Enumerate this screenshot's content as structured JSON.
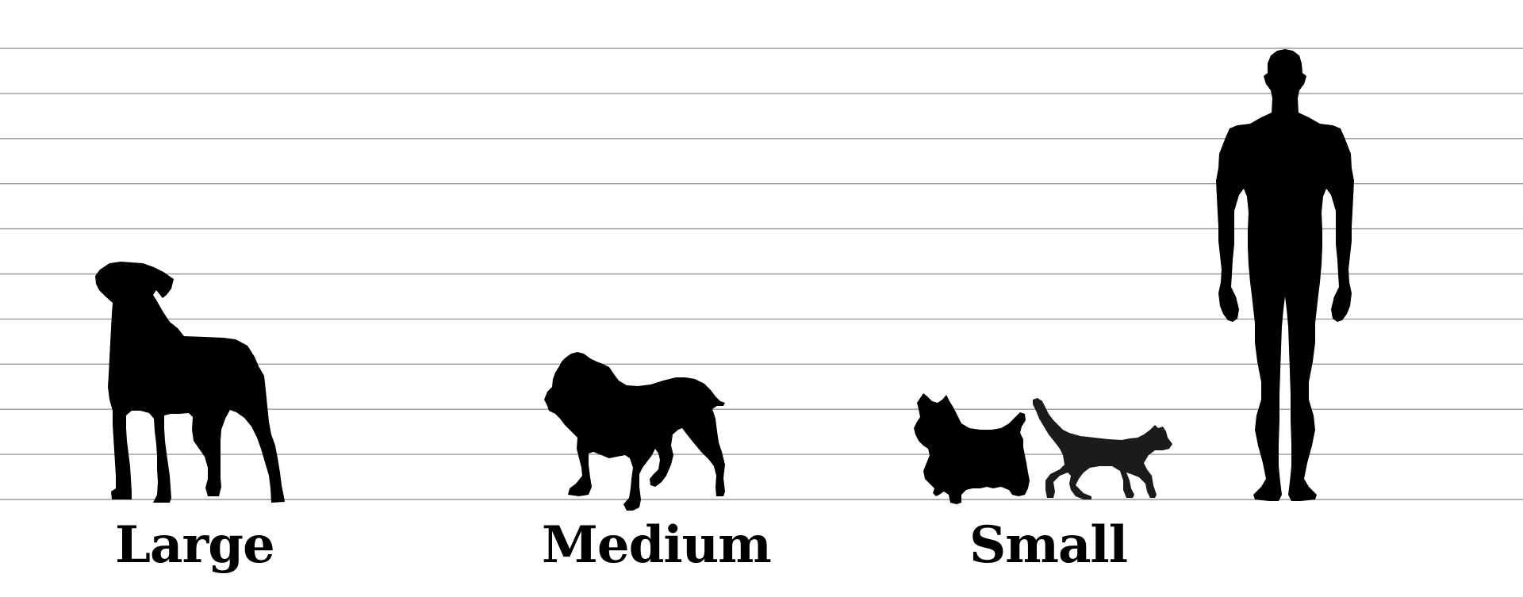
{
  "colors": {
    "background": "#ffffff",
    "silhouette": "#000000",
    "cat_silhouette": "#1c1a1a",
    "grid_line": "#9a9a9a"
  },
  "size_labels": {
    "large": "Large",
    "medium": "Medium",
    "small": "Small"
  },
  "figures": [
    {
      "name": "large-dog-silhouette",
      "size_class": "Large"
    },
    {
      "name": "bulldog-silhouette",
      "size_class": "Medium"
    },
    {
      "name": "terrier-silhouette",
      "size_class": "Small"
    },
    {
      "name": "cat-silhouette",
      "size_class": "Small"
    },
    {
      "name": "human-silhouette",
      "size_class": "reference"
    }
  ],
  "grid": {
    "line_count": 11
  }
}
